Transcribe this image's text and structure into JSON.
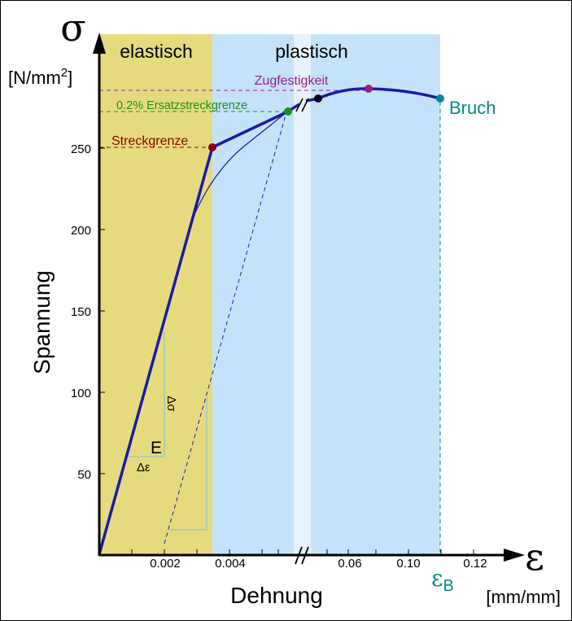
{
  "chart_data": {
    "type": "line",
    "title": "",
    "y_symbol": "σ",
    "y_unit": "[N/mm2]",
    "y_title": "Spannung",
    "x_symbol": "ε",
    "x_unit": "[mm/mm]",
    "x_title": "Dehnung",
    "region_labels": [
      "elastisch",
      "plastisch"
    ],
    "y_ticks": [
      "250",
      "200",
      "150",
      "100",
      "50"
    ],
    "x_ticks_left": [
      "0.002",
      "0.004"
    ],
    "x_ticks_right": [
      "0.06",
      "0.10",
      "0.12"
    ],
    "x_break": "broken axis",
    "points": {
      "streckgrenze": {
        "label": "Streckgrenze",
        "x": 0.0034,
        "y": 250,
        "color": "#8b0000"
      },
      "ersatzstreckgrenze": {
        "label": "0.2% Ersatzstreckgrenze",
        "x": 0.0058,
        "y": 272,
        "color": "#1a8f1a"
      },
      "zugfestigkeit": {
        "label": "Zugfestigkeit",
        "x": 0.068,
        "y": 286,
        "color": "#9a1a8a"
      },
      "bruch": {
        "label": "Bruch",
        "x": 0.11,
        "y": 280,
        "color": "#008b8b"
      }
    },
    "bruch_strain_label": "εB",
    "modulus_label": "E",
    "delta_epsilon": "Δε",
    "delta_sigma": "Δσ",
    "colors": {
      "elastic_region": "#e5db7e",
      "plastic_region": "#c4e3fb",
      "break_band": "#e6f3fd",
      "curve": "#1a1aa6",
      "axis": "#000000",
      "construction": "#7ec0e0"
    }
  }
}
